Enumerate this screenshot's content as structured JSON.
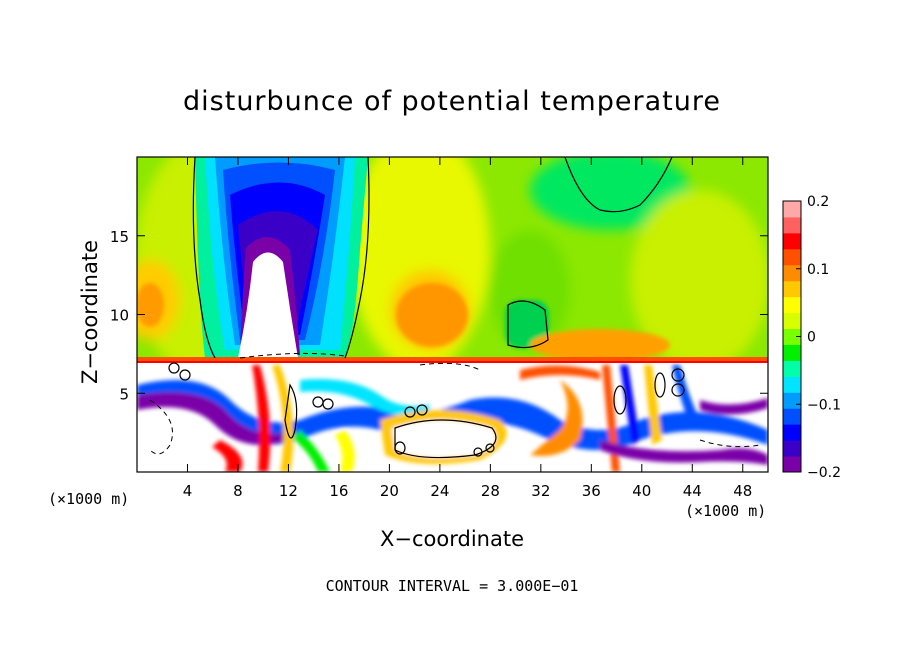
{
  "chart_data": {
    "type": "heatmap",
    "title": "disturbunce of potential temperature",
    "xlabel": "X−coordinate",
    "ylabel": "Z−coordinate",
    "x_unit": "(×1000 m)",
    "y_unit": "(×1000 m)",
    "xlim": [
      0,
      50
    ],
    "ylim": [
      0,
      20
    ],
    "x_ticks": [
      "4",
      "8",
      "12",
      "16",
      "20",
      "24",
      "28",
      "32",
      "36",
      "40",
      "44",
      "48"
    ],
    "x_tick_values": [
      4,
      8,
      12,
      16,
      20,
      24,
      28,
      32,
      36,
      40,
      44,
      48
    ],
    "y_ticks": [
      "5",
      "10",
      "15"
    ],
    "y_tick_values": [
      5,
      10,
      15
    ],
    "colorbar": {
      "range": [
        -0.2,
        0.2
      ],
      "tick_labels": [
        "0.2",
        "0.1",
        "0",
        "−0.1",
        "−0.2"
      ],
      "tick_values": [
        0.2,
        0.1,
        0,
        -0.1,
        -0.2
      ],
      "colors": [
        "#7a00a8",
        "#3a00c8",
        "#0000ff",
        "#0050ff",
        "#009cff",
        "#00e4ff",
        "#00ffa8",
        "#00f000",
        "#78ff00",
        "#d8ff00",
        "#ffff00",
        "#ffc800",
        "#ff8c00",
        "#ff5000",
        "#ff0000",
        "#ff6060",
        "#ffa8a8"
      ]
    },
    "annotation": "CONTOUR INTERVAL = 3.000E−01",
    "grid": false
  }
}
